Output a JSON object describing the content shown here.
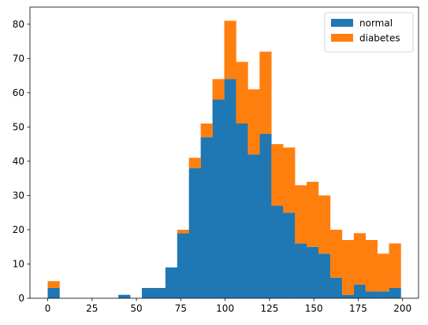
{
  "chart_data": {
    "type": "bar",
    "stacked": true,
    "bin_start": 0,
    "bin_width": 6.6333,
    "xlim": [
      -10,
      209
    ],
    "ylim": [
      0,
      85
    ],
    "x_ticks": [
      0,
      25,
      50,
      75,
      100,
      125,
      150,
      175,
      200
    ],
    "y_ticks": [
      0,
      10,
      20,
      30,
      40,
      50,
      60,
      70,
      80
    ],
    "grid": false,
    "legend_position": "top-right",
    "series": [
      {
        "name": "normal",
        "color": "#1f77b4",
        "values": [
          3,
          0,
          0,
          0,
          0,
          0,
          1,
          0,
          3,
          3,
          9,
          19,
          38,
          47,
          58,
          64,
          51,
          42,
          48,
          27,
          25,
          16,
          15,
          13,
          6,
          1,
          4,
          2,
          2,
          3
        ]
      },
      {
        "name": "diabetes",
        "color": "#ff7f0e",
        "values": [
          2,
          0,
          0,
          0,
          0,
          0,
          0,
          0,
          0,
          0,
          0,
          1,
          3,
          4,
          6,
          17,
          18,
          19,
          24,
          18,
          19,
          17,
          19,
          17,
          14,
          16,
          15,
          15,
          11,
          13
        ]
      }
    ]
  }
}
